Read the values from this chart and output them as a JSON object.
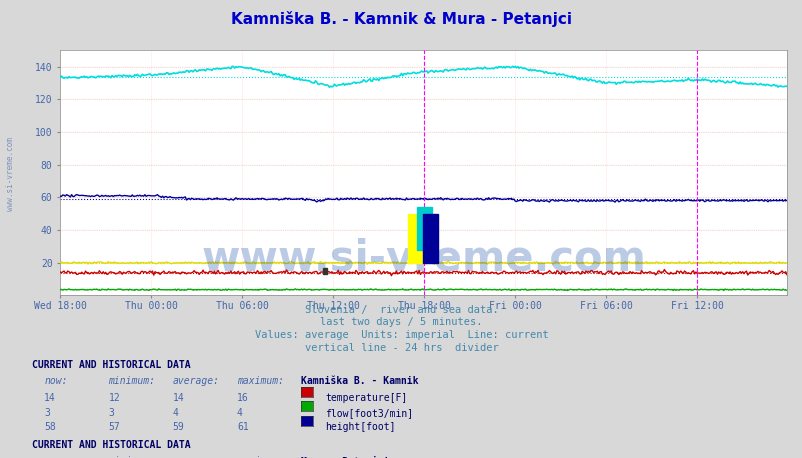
{
  "title": "Kamniška B. - Kamnik & Mura - Petanjci",
  "title_color": "#0000cc",
  "bg_color": "#d8d8d8",
  "plot_bg_color": "#ffffff",
  "subtitle_lines": [
    "Slovenia /  river and sea data.",
    "last two days / 5 minutes.",
    "Values: average  Units: imperial  Line: current",
    "vertical line - 24 hrs  divider"
  ],
  "subtitle_color": "#4488aa",
  "watermark": "www.si-vreme.com",
  "watermark_color": "#2255aa",
  "ylim": [
    0,
    150
  ],
  "yticks": [
    20,
    40,
    60,
    80,
    100,
    120,
    140
  ],
  "xtick_labels": [
    "Wed 18:00",
    "Thu 00:00",
    "Thu 06:00",
    "Thu 12:00",
    "Thu 18:00",
    "Fri 00:00",
    "Fri 06:00",
    "Fri 12:00"
  ],
  "xtick_positions": [
    0,
    72,
    144,
    216,
    288,
    360,
    432,
    504
  ],
  "grid_color_h": "#ffaaaa",
  "grid_color_v": "#ffcccc",
  "grid_color_v2": "#ccddcc",
  "vline_color": "#ff00ff",
  "vline_x": 288,
  "vline2_x": 504,
  "n_points": 576,
  "station1": {
    "name": "Kamniška B. - Kamnik",
    "temp_color": "#cc0000",
    "flow_color": "#00aa00",
    "height_color": "#000099",
    "temp_now": 14,
    "temp_min": 12,
    "temp_avg": 14,
    "temp_max": 16,
    "flow_now": 3,
    "flow_min": 3,
    "flow_avg": 4,
    "flow_max": 4,
    "height_now": 58,
    "height_min": 57,
    "height_avg": 59,
    "height_max": 61
  },
  "station2": {
    "name": "Mura - Petanjci",
    "temp_color": "#dddd00",
    "flow_color": "#dd00dd",
    "height_color": "#00dddd",
    "temp_now": 20,
    "temp_min": 18,
    "temp_avg": 20,
    "temp_max": 22,
    "height_now": 127,
    "height_min": 127,
    "height_avg": 134,
    "height_max": 140
  },
  "table_color": "#4466aa",
  "label_color": "#000066",
  "sidewater_color": "#4466aa"
}
